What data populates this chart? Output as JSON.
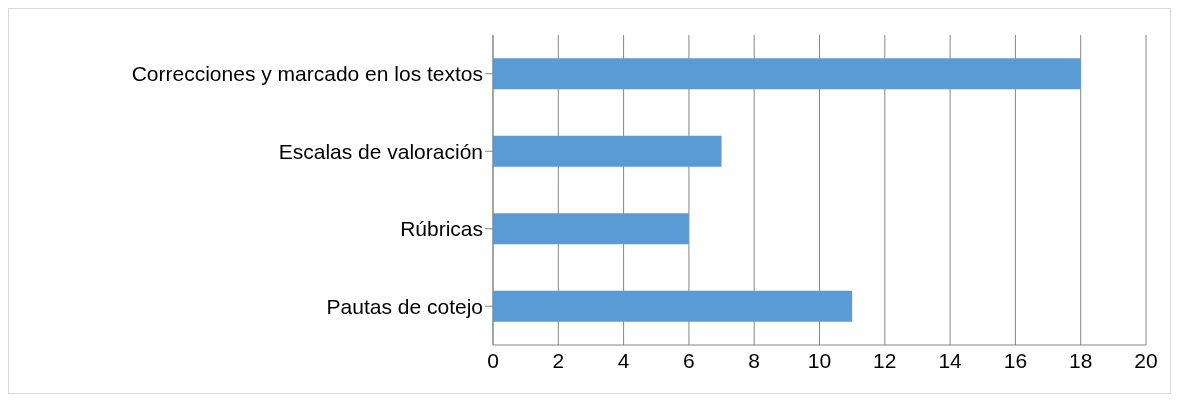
{
  "chart_data": {
    "type": "bar",
    "orientation": "horizontal",
    "categories": [
      "Correcciones y marcado en los textos",
      "Escalas de valoración",
      "Rúbricas",
      "Pautas de cotejo"
    ],
    "values": [
      18,
      7,
      6,
      11
    ],
    "color": "#5b9bd5",
    "xlim": [
      0,
      20
    ],
    "xticks": [
      0,
      2,
      4,
      6,
      8,
      10,
      12,
      14,
      16,
      18,
      20
    ],
    "grid": "x"
  }
}
